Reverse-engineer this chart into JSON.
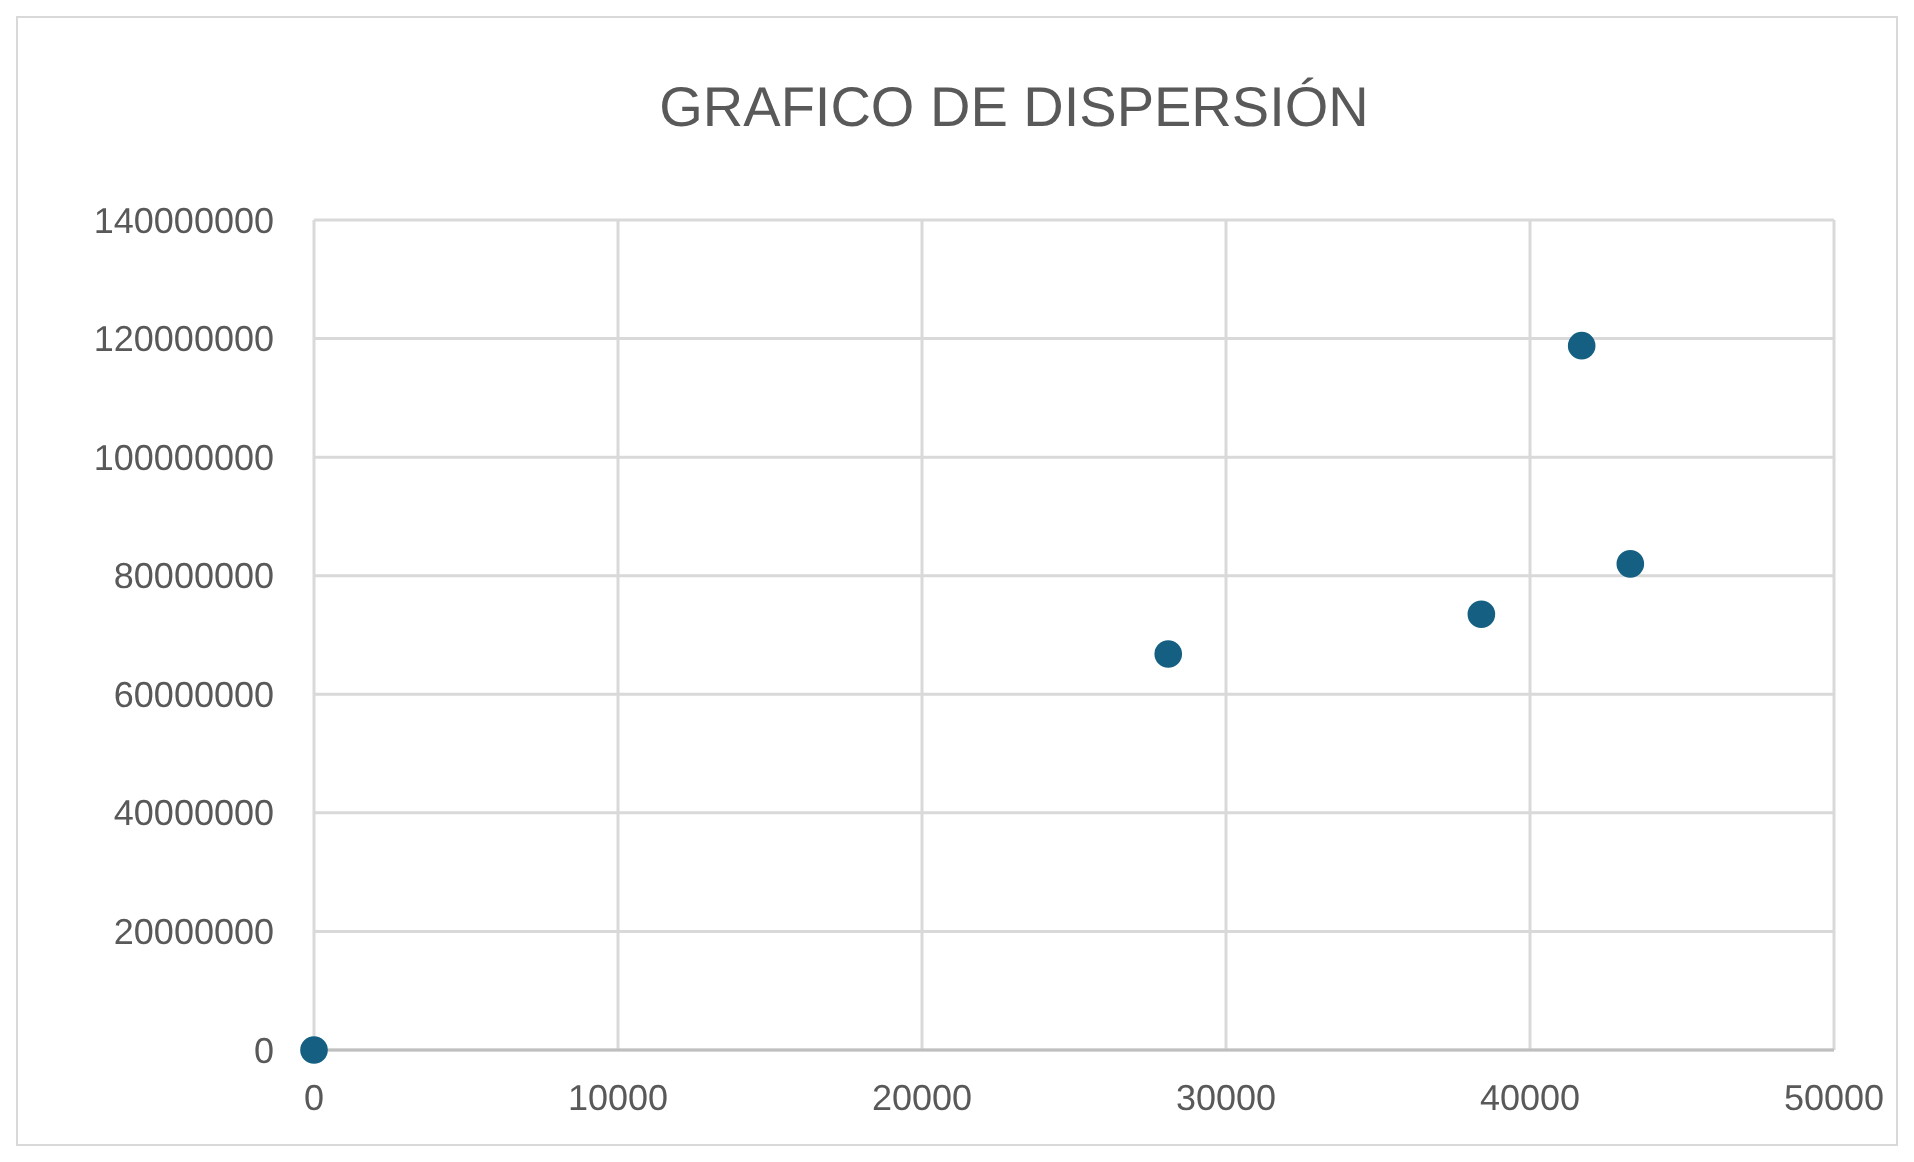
{
  "chart_data": {
    "type": "scatter",
    "title": "GRAFICO DE DISPERSIÓN",
    "x": [
      0,
      28100,
      38400,
      41700,
      43300
    ],
    "values": [
      0,
      66800000,
      73500000,
      118800000,
      82000000
    ],
    "color": "#156082",
    "marker": "circle",
    "grid": true,
    "xlim": [
      0,
      50000
    ],
    "xticks": [
      0,
      10000,
      20000,
      30000,
      40000,
      50000
    ],
    "ylim": [
      0,
      140000000
    ],
    "yticks": [
      0,
      20000000,
      40000000,
      60000000,
      80000000,
      100000000,
      120000000,
      140000000
    ]
  }
}
